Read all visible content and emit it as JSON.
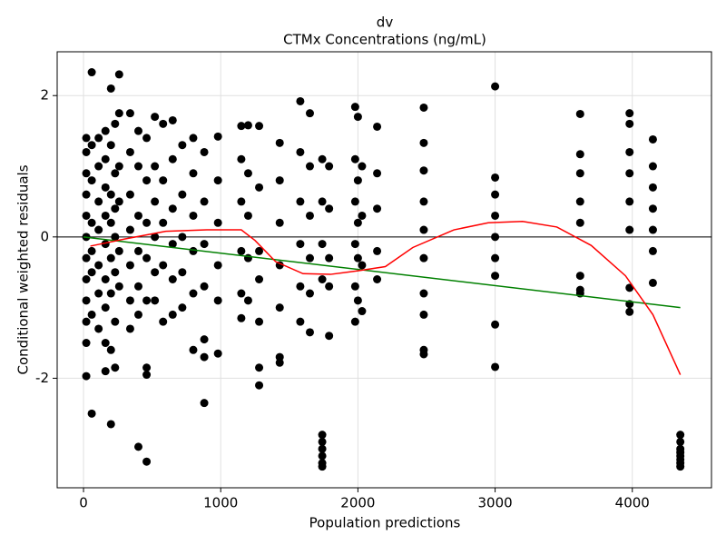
{
  "chart_data": {
    "type": "scatter",
    "title": "dv",
    "subtitle": "CTMx Concentrations (ng/mL)",
    "x_label": "Population predictions",
    "y_label": "Conditional weighted residuals",
    "xlim": [
      -192,
      4577
    ],
    "ylim": [
      -3.55,
      2.62
    ],
    "xticks": [
      0,
      1000,
      2000,
      3000,
      4000
    ],
    "yticks": [
      -2,
      0,
      2
    ],
    "grid": true,
    "hline": 0,
    "series": [
      {
        "type": "scatter",
        "color": "#000000",
        "x": [
          20,
          20,
          20,
          20,
          20,
          20,
          20,
          20,
          20,
          20,
          20,
          20,
          60,
          60,
          60,
          60,
          60,
          60,
          60,
          60,
          110,
          110,
          110,
          110,
          110,
          110,
          110,
          160,
          160,
          160,
          160,
          160,
          160,
          160,
          160,
          160,
          200,
          200,
          200,
          200,
          200,
          200,
          200,
          200,
          230,
          230,
          230,
          230,
          230,
          230,
          230,
          260,
          260,
          260,
          260,
          260,
          260,
          340,
          340,
          340,
          340,
          340,
          340,
          340,
          400,
          400,
          400,
          400,
          400,
          400,
          400,
          460,
          460,
          460,
          460,
          460,
          460,
          460,
          460,
          520,
          520,
          520,
          520,
          520,
          520,
          580,
          580,
          580,
          580,
          580,
          650,
          650,
          650,
          650,
          650,
          650,
          720,
          720,
          720,
          720,
          720,
          800,
          800,
          800,
          800,
          800,
          800,
          880,
          880,
          880,
          880,
          880,
          880,
          880,
          980,
          980,
          980,
          980,
          980,
          980,
          1150,
          1150,
          1150,
          1150,
          1150,
          1150,
          1200,
          1200,
          1200,
          1200,
          1200,
          1280,
          1280,
          1280,
          1280,
          1280,
          1280,
          1280,
          1430,
          1430,
          1430,
          1430,
          1430,
          1430,
          1430,
          1580,
          1580,
          1580,
          1580,
          1580,
          1580,
          1650,
          1650,
          1650,
          1650,
          1650,
          1650,
          1740,
          1740,
          1740,
          1740,
          1740,
          1740,
          1740,
          1740,
          1740,
          1740,
          1790,
          1790,
          1790,
          1790,
          1790,
          1980,
          1980,
          1980,
          1980,
          1980,
          1980,
          2000,
          2000,
          2000,
          2000,
          2000,
          2030,
          2030,
          2030,
          2030,
          2140,
          2140,
          2140,
          2140,
          2140,
          2480,
          2480,
          2480,
          2480,
          2480,
          2480,
          2480,
          2480,
          2480,
          2480,
          3000,
          3000,
          3000,
          3000,
          3000,
          3000,
          3000,
          3000,
          3000,
          3620,
          3620,
          3620,
          3620,
          3620,
          3620,
          3620,
          3620,
          3980,
          3980,
          3980,
          3980,
          3980,
          3980,
          3980,
          3980,
          3980,
          4150,
          4150,
          4150,
          4150,
          4150,
          4150,
          4150,
          4350,
          4350,
          4350,
          4350,
          4350,
          4350,
          4350,
          4350
        ],
        "values": [
          1.4,
          1.2,
          0.9,
          0.6,
          0.3,
          0,
          -0.3,
          -0.6,
          -0.9,
          -1.2,
          -1.5,
          -1.97,
          2.33,
          1.3,
          0.8,
          0.2,
          -0.2,
          -0.5,
          -1.1,
          -2.5,
          1.4,
          1.0,
          0.5,
          0.1,
          -0.4,
          -0.8,
          -1.3,
          1.5,
          1.1,
          0.7,
          0.3,
          -0.1,
          -0.6,
          -1.0,
          -1.5,
          -1.9,
          2.1,
          1.3,
          0.6,
          0.2,
          -0.3,
          -0.8,
          -1.6,
          -2.65,
          1.6,
          0.9,
          0.4,
          0,
          -0.5,
          -1.2,
          -1.85,
          2.3,
          1.75,
          1.0,
          0.5,
          -0.2,
          -0.7,
          1.75,
          1.2,
          0.6,
          0.1,
          -0.4,
          -0.9,
          -1.3,
          1.5,
          1.0,
          0.3,
          -0.2,
          -0.7,
          -1.1,
          -2.97,
          1.4,
          0.8,
          0.2,
          -0.3,
          -0.9,
          -1.85,
          -1.95,
          -3.18,
          1.7,
          1.0,
          0.5,
          0,
          -0.5,
          -0.9,
          1.6,
          0.8,
          0.2,
          -0.4,
          -1.2,
          1.65,
          1.1,
          0.4,
          -0.1,
          -0.6,
          -1.1,
          1.3,
          0.6,
          0,
          -0.5,
          -1.0,
          1.4,
          0.9,
          0.3,
          -0.2,
          -0.8,
          -1.6,
          1.2,
          0.5,
          -0.1,
          -0.7,
          -1.45,
          -1.7,
          -2.35,
          1.42,
          0.8,
          0.2,
          -0.4,
          -0.9,
          -1.65,
          1.57,
          1.1,
          0.5,
          -0.2,
          -0.8,
          -1.15,
          1.58,
          0.9,
          0.3,
          -0.3,
          -0.9,
          1.57,
          0.7,
          -0.2,
          -0.6,
          -1.2,
          -1.85,
          -2.1,
          1.33,
          0.8,
          0.2,
          -0.4,
          -1.0,
          -1.7,
          -1.78,
          1.92,
          1.2,
          0.5,
          -0.1,
          -0.7,
          -1.2,
          1.75,
          1.0,
          0.3,
          -0.3,
          -0.8,
          -1.35,
          1.1,
          0.5,
          -0.1,
          -0.6,
          -2.8,
          -2.9,
          -3.0,
          -3.1,
          -3.2,
          -3.25,
          1.0,
          0.4,
          -0.3,
          -0.7,
          -1.4,
          1.84,
          1.1,
          0.5,
          -0.1,
          -0.7,
          -1.2,
          1.7,
          0.8,
          0.2,
          -0.3,
          -0.9,
          1.0,
          0.3,
          -0.4,
          -1.05,
          1.56,
          0.9,
          0.4,
          -0.2,
          -0.6,
          1.83,
          1.33,
          0.94,
          0.5,
          0.1,
          -0.3,
          -0.8,
          -1.1,
          -1.6,
          -1.66,
          2.13,
          0.84,
          0.6,
          0.3,
          0,
          -0.3,
          -0.55,
          -1.24,
          -1.84,
          1.74,
          1.17,
          0.9,
          0.5,
          0.2,
          -0.55,
          -0.75,
          -0.8,
          1.75,
          1.6,
          1.2,
          0.9,
          0.5,
          0.1,
          -0.72,
          -0.95,
          -1.06,
          1.38,
          1.0,
          0.7,
          0.4,
          0.1,
          -0.2,
          -0.65,
          -2.8,
          -2.9,
          -3.0,
          -3.05,
          -3.1,
          -3.15,
          -3.2,
          -3.25
        ]
      },
      {
        "type": "line",
        "color": "#008000",
        "x": [
          0,
          4350
        ],
        "values": [
          0,
          -1.0
        ]
      },
      {
        "type": "line",
        "color": "#ff0000",
        "x": [
          50,
          300,
          600,
          900,
          1150,
          1250,
          1400,
          1600,
          1800,
          2000,
          2200,
          2400,
          2700,
          2950,
          3200,
          3450,
          3700,
          3950,
          4150,
          4350
        ],
        "values": [
          -0.13,
          -0.03,
          0.08,
          0.1,
          0.1,
          -0.05,
          -0.35,
          -0.52,
          -0.53,
          -0.48,
          -0.42,
          -0.15,
          0.1,
          0.2,
          0.22,
          0.14,
          -0.12,
          -0.55,
          -1.1,
          -1.95
        ]
      }
    ]
  }
}
